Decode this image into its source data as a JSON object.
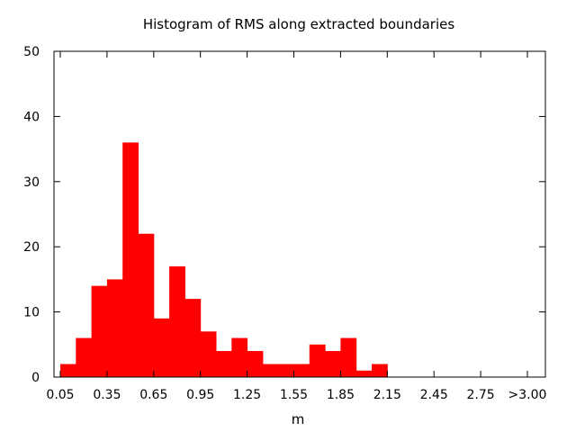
{
  "chart_data": {
    "type": "bar",
    "title": "Histogram of RMS along extracted boundaries",
    "xlabel": "m",
    "ylabel": "",
    "ylim": [
      0,
      50
    ],
    "xlim": [
      0.05,
      3.05
    ],
    "y_ticks": [
      "0",
      "10",
      "20",
      "30",
      "40",
      "50"
    ],
    "x_ticks": [
      "0.05",
      "0.35",
      "0.65",
      "0.95",
      "1.25",
      "1.55",
      "1.85",
      "2.15",
      "2.45",
      "2.75",
      ">3.00"
    ],
    "bin_width": 0.1,
    "bin_starts": [
      0.1,
      0.2,
      0.3,
      0.4,
      0.5,
      0.6,
      0.7,
      0.8,
      0.9,
      1.0,
      1.1,
      1.2,
      1.3,
      1.4,
      1.5,
      1.6,
      1.7,
      1.8,
      1.9,
      2.0,
      2.1
    ],
    "values": [
      2,
      6,
      14,
      15,
      36,
      22,
      9,
      17,
      12,
      7,
      4,
      6,
      4,
      2,
      2,
      2,
      5,
      4,
      6,
      1,
      2
    ],
    "bar_color": "#ff0000",
    "grid": false
  }
}
